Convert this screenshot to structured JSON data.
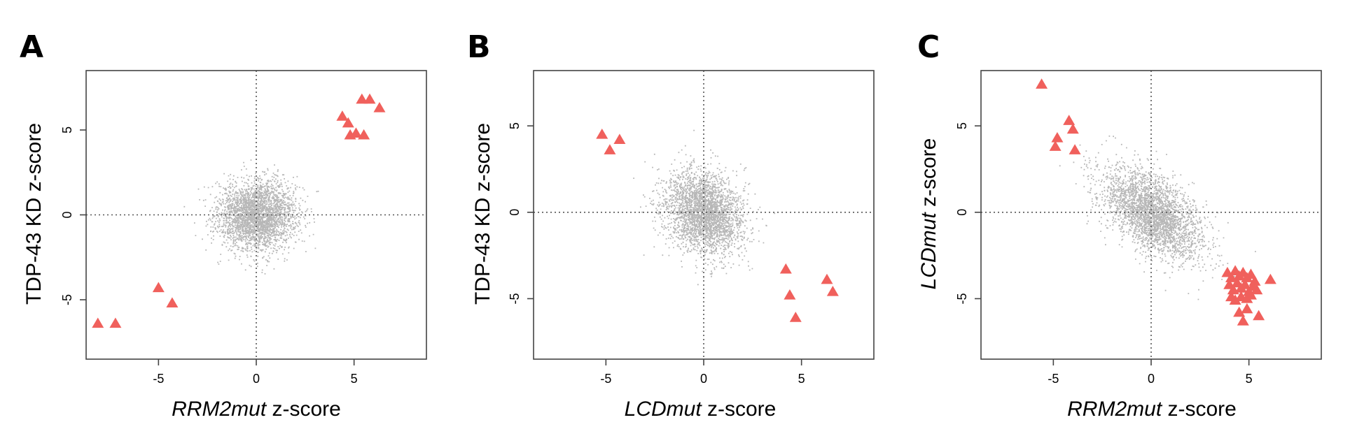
{
  "figure": {
    "panel_labels": [
      "A",
      "B",
      "C"
    ],
    "point_color": "#aaaaaa",
    "highlight_color": "#f0605c"
  },
  "chart_data": [
    {
      "type": "scatter",
      "panel": "A",
      "xlabel_italic": "RRM2mut",
      "xlabel_rest": " z-score",
      "ylabel": "TDP-43 KD z-score",
      "xlim": [
        -8.7,
        8.7
      ],
      "ylim": [
        -8.5,
        8.5
      ],
      "xticks": [
        -5,
        0,
        5
      ],
      "yticks": [
        -5,
        0,
        5
      ],
      "xtick_labels": [
        "-5",
        "0",
        "5"
      ],
      "ytick_labels": [
        "-5",
        "0",
        "5"
      ],
      "reference_lines": {
        "x": 0,
        "y": 0,
        "style": "dotted"
      },
      "background_cloud": {
        "center": [
          0,
          0
        ],
        "sd": [
          1.0,
          1.0
        ],
        "correlation": 0.0,
        "color": "#aaaaaa"
      },
      "highlighted": {
        "marker": "triangle",
        "color": "#f0605c",
        "points": [
          [
            4.4,
            5.8
          ],
          [
            4.7,
            5.4
          ],
          [
            5.4,
            6.8
          ],
          [
            5.8,
            6.8
          ],
          [
            6.3,
            6.3
          ],
          [
            4.8,
            4.7
          ],
          [
            5.1,
            4.8
          ],
          [
            5.5,
            4.7
          ],
          [
            -5.0,
            -4.3
          ],
          [
            -4.3,
            -5.2
          ],
          [
            -8.1,
            -6.4
          ],
          [
            -7.2,
            -6.4
          ]
        ]
      }
    },
    {
      "type": "scatter",
      "panel": "B",
      "xlabel_italic": "LCDmut",
      "xlabel_rest": " z-score",
      "ylabel": "TDP-43 KD z-score",
      "xlim": [
        -8.7,
        8.7
      ],
      "ylim": [
        -8.5,
        8.2
      ],
      "xticks": [
        -5,
        0,
        5
      ],
      "yticks": [
        -5,
        0,
        5
      ],
      "xtick_labels": [
        "-5",
        "0",
        "5"
      ],
      "ytick_labels": [
        "-5",
        "0",
        "5"
      ],
      "reference_lines": {
        "x": 0,
        "y": 0,
        "style": "dotted"
      },
      "background_cloud": {
        "center": [
          0,
          0
        ],
        "sd": [
          1.0,
          1.2
        ],
        "correlation": -0.2,
        "color": "#aaaaaa"
      },
      "highlighted": {
        "marker": "triangle",
        "color": "#f0605c",
        "points": [
          [
            -5.2,
            4.5
          ],
          [
            -4.3,
            4.2
          ],
          [
            -4.8,
            3.6
          ],
          [
            4.2,
            -3.3
          ],
          [
            4.4,
            -4.8
          ],
          [
            4.7,
            -6.1
          ],
          [
            6.3,
            -3.9
          ],
          [
            6.6,
            -4.6
          ]
        ]
      }
    },
    {
      "type": "scatter",
      "panel": "C",
      "xlabel_italic": "RRM2mut",
      "xlabel_rest": " z-score",
      "ylabel_italic": "LCDmut",
      "ylabel_rest": " z-score",
      "xlim": [
        -8.7,
        8.7
      ],
      "ylim": [
        -8.5,
        8.2
      ],
      "xticks": [
        -5,
        0,
        5
      ],
      "yticks": [
        -5,
        0,
        5
      ],
      "xtick_labels": [
        "-5",
        "0",
        "5"
      ],
      "ytick_labels": [
        "-5",
        "0",
        "5"
      ],
      "reference_lines": {
        "x": 0,
        "y": 0,
        "style": "dotted"
      },
      "background_cloud": {
        "center": [
          0,
          0
        ],
        "sd": [
          1.3,
          1.3
        ],
        "correlation": -0.55,
        "color": "#aaaaaa"
      },
      "highlighted": {
        "marker": "triangle",
        "color": "#f0605c",
        "points": [
          [
            -5.6,
            7.4
          ],
          [
            -4.8,
            4.3
          ],
          [
            -4.9,
            3.8
          ],
          [
            -4.2,
            5.3
          ],
          [
            -4.0,
            4.8
          ],
          [
            -3.9,
            3.6
          ],
          [
            3.9,
            -3.5
          ],
          [
            4.1,
            -3.8
          ],
          [
            4.3,
            -3.4
          ],
          [
            4.5,
            -3.7
          ],
          [
            4.7,
            -3.5
          ],
          [
            4.9,
            -3.8
          ],
          [
            5.1,
            -3.6
          ],
          [
            4.0,
            -4.2
          ],
          [
            4.2,
            -4.5
          ],
          [
            4.4,
            -4.1
          ],
          [
            4.6,
            -4.4
          ],
          [
            4.8,
            -4.2
          ],
          [
            5.0,
            -4.6
          ],
          [
            5.2,
            -4.3
          ],
          [
            5.4,
            -4.5
          ],
          [
            4.1,
            -4.9
          ],
          [
            4.3,
            -5.1
          ],
          [
            4.6,
            -4.9
          ],
          [
            4.9,
            -5.0
          ],
          [
            5.1,
            -4.8
          ],
          [
            4.5,
            -5.8
          ],
          [
            4.9,
            -5.6
          ],
          [
            4.7,
            -6.3
          ],
          [
            5.5,
            -6.0
          ],
          [
            6.1,
            -3.9
          ],
          [
            5.3,
            -4.0
          ]
        ]
      }
    }
  ]
}
